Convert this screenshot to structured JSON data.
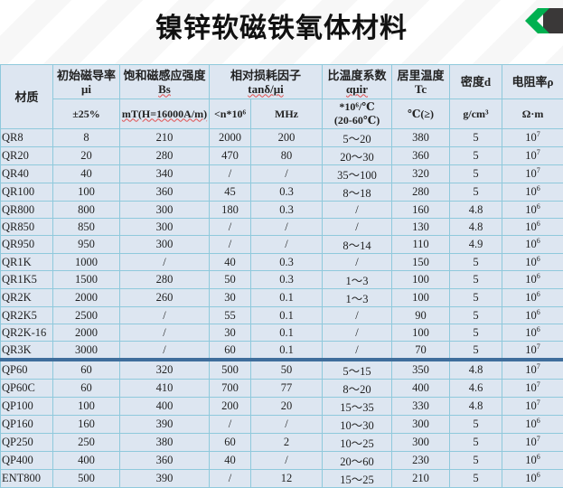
{
  "title": "镍锌软磁铁氧体材料",
  "logo_colors": {
    "green": "#00b050",
    "dark": "#3a3838"
  },
  "header": {
    "material": "材质",
    "mu_i": {
      "label": "初始磁导率",
      "symbol": "μi",
      "unit": "±25%"
    },
    "bs": {
      "label": "饱和磁感应强度",
      "symbol": "Bs",
      "unit": "mT(H=16000A/m)"
    },
    "loss": {
      "label": "相对损耗因子",
      "symbol": "tanδ/μi",
      "unit1": "<n*10⁶",
      "unit2": "MHz"
    },
    "temp_coef": {
      "label": "比温度系数",
      "symbol": "αμir",
      "unit": "*10⁶/℃",
      "unit_sub": "(20-60℃)"
    },
    "tc": {
      "label": "居里温度",
      "symbol": "Tc",
      "unit": "℃(≥)"
    },
    "density": {
      "label": "密度d",
      "unit": "g/cm³"
    },
    "resistivity": {
      "label": "电阻率ρ",
      "unit": "Ω·m"
    }
  },
  "rows": [
    {
      "m": "QR8",
      "mu": "8",
      "bs": "210",
      "tan": "2000",
      "f": "200",
      "a": "5～20",
      "tc": "380",
      "d": "5",
      "r": "7"
    },
    {
      "m": "QR20",
      "mu": "20",
      "bs": "280",
      "tan": "470",
      "f": "80",
      "a": "20～30",
      "tc": "360",
      "d": "5",
      "r": "7"
    },
    {
      "m": "QR40",
      "mu": "40",
      "bs": "340",
      "tan": "/",
      "f": "/",
      "a": "35～100",
      "tc": "320",
      "d": "5",
      "r": "7"
    },
    {
      "m": "QR100",
      "mu": "100",
      "bs": "360",
      "tan": "45",
      "f": "0.3",
      "a": "8～18",
      "tc": "280",
      "d": "5",
      "r": "6"
    },
    {
      "m": "QR800",
      "mu": "800",
      "bs": "300",
      "tan": "180",
      "f": "0.3",
      "a": "/",
      "tc": "160",
      "d": "4.8",
      "r": "6"
    },
    {
      "m": "QR850",
      "mu": "850",
      "bs": "300",
      "tan": "/",
      "f": "/",
      "a": "/",
      "tc": "130",
      "d": "4.8",
      "r": "6"
    },
    {
      "m": "QR950",
      "mu": "950",
      "bs": "300",
      "tan": "/",
      "f": "/",
      "a": "8～14",
      "tc": "110",
      "d": "4.9",
      "r": "6"
    },
    {
      "m": "QR1K",
      "mu": "1000",
      "bs": "/",
      "tan": "40",
      "f": "0.3",
      "a": "/",
      "tc": "150",
      "d": "5",
      "r": "6"
    },
    {
      "m": "QR1K5",
      "mu": "1500",
      "bs": "280",
      "tan": "50",
      "f": "0.3",
      "a": "1～3",
      "tc": "100",
      "d": "5",
      "r": "6"
    },
    {
      "m": "QR2K",
      "mu": "2000",
      "bs": "260",
      "tan": "30",
      "f": "0.1",
      "a": "1～3",
      "tc": "100",
      "d": "5",
      "r": "6"
    },
    {
      "m": "QR2K5",
      "mu": "2500",
      "bs": "/",
      "tan": "55",
      "f": "0.1",
      "a": "/",
      "tc": "90",
      "d": "5",
      "r": "6"
    },
    {
      "m": "QR2K-16",
      "mu": "2000",
      "bs": "/",
      "tan": "30",
      "f": "0.1",
      "a": "/",
      "tc": "100",
      "d": "5",
      "r": "6"
    },
    {
      "m": "QR3K",
      "mu": "3000",
      "bs": "/",
      "tan": "60",
      "f": "0.1",
      "a": "/",
      "tc": "70",
      "d": "5",
      "r": "7"
    },
    {
      "m": "QP60",
      "mu": "60",
      "bs": "320",
      "tan": "500",
      "f": "50",
      "a": "5～15",
      "tc": "350",
      "d": "4.8",
      "r": "7"
    },
    {
      "m": "QP60C",
      "mu": "60",
      "bs": "410",
      "tan": "700",
      "f": "77",
      "a": "8～20",
      "tc": "400",
      "d": "4.6",
      "r": "7"
    },
    {
      "m": "QP100",
      "mu": "100",
      "bs": "400",
      "tan": "200",
      "f": "20",
      "a": "15～35",
      "tc": "330",
      "d": "4.8",
      "r": "7"
    },
    {
      "m": "QP160",
      "mu": "160",
      "bs": "390",
      "tan": "/",
      "f": "/",
      "a": "10～30",
      "tc": "300",
      "d": "5",
      "r": "6"
    },
    {
      "m": "QP250",
      "mu": "250",
      "bs": "380",
      "tan": "60",
      "f": "2",
      "a": "10～25",
      "tc": "300",
      "d": "5",
      "r": "7"
    },
    {
      "m": "QP400",
      "mu": "400",
      "bs": "360",
      "tan": "40",
      "f": "/",
      "a": "20～60",
      "tc": "230",
      "d": "5",
      "r": "6"
    },
    {
      "m": "ENT800",
      "mu": "500",
      "bs": "390",
      "tan": "/",
      "f": "12",
      "a": "15～25",
      "tc": "210",
      "d": "5",
      "r": "6"
    }
  ],
  "resistivity_base": "10"
}
